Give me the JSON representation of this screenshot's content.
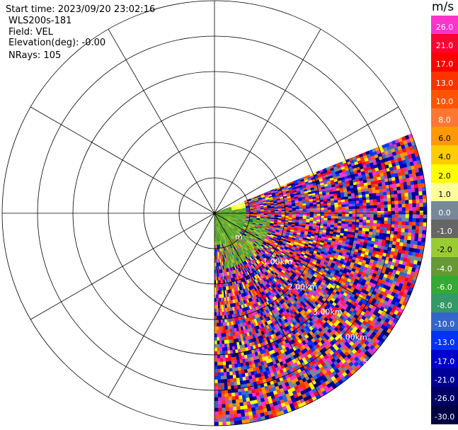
{
  "header": {
    "start_time": "Start time: 2023/09/20 23:02:16",
    "instrument": "WLS200s-181",
    "field": "Field: VEL",
    "elevation": "Elevation(deg): -0.00",
    "nrays": "NRays: 105"
  },
  "range_labels": [
    "m",
    "1.00km",
    "2.00km",
    "3.00km",
    "4.00km",
    "5.00km"
  ],
  "colorbar": {
    "unit": "m/s",
    "ticks": [
      "26.0",
      "21.0",
      "17.0",
      "13.0",
      "10.0",
      "8.0",
      "6.0",
      "4.0",
      "2.0",
      "1.0",
      "0.0",
      "-1.0",
      "-2.0",
      "-4.0",
      "-6.0",
      "-8.0",
      "-10.0",
      "-13.0",
      "-17.0",
      "-21.0",
      "-26.0",
      "-30.0"
    ],
    "colors": [
      "#ff33cc",
      "#ff0033",
      "#ff0000",
      "#ff3300",
      "#ff5500",
      "#ff7733",
      "#ff9900",
      "#ffcc00",
      "#ffff00",
      "#ffff99",
      "#778899",
      "#666666",
      "#99cc33",
      "#669933",
      "#33aa33",
      "#339966",
      "#3366cc",
      "#0033ff",
      "#0000cc",
      "#000099",
      "#000066",
      "#000044"
    ]
  },
  "chart_data": {
    "type": "heatmap",
    "title": "",
    "field": "VEL",
    "units": "m/s",
    "elevation_deg": 0.0,
    "nrays": 105,
    "azimuth_coverage_deg": [
      68,
      180
    ],
    "range_km": [
      0,
      6
    ],
    "range_rings_km": [
      1,
      2,
      3,
      4,
      5,
      6
    ],
    "spoke_interval_deg": 30,
    "color_range": [
      -30,
      26
    ]
  }
}
